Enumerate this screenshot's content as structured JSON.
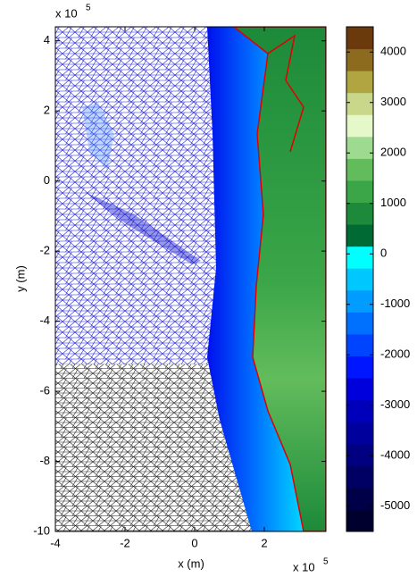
{
  "chart_data": {
    "type": "mesh",
    "x_label": "x (m)",
    "y_label": "y (m)",
    "x_scale_label": {
      "base": "x 10",
      "power": "5"
    },
    "y_scale_label": {
      "base": "x 10",
      "power": "5"
    },
    "xlim": [
      -4,
      3.77
    ],
    "ylim": [
      -10,
      4.4
    ],
    "xticks": [
      -4,
      -2,
      0,
      2
    ],
    "yticks": [
      -10,
      -8,
      -6,
      -4,
      -2,
      0,
      2,
      4
    ],
    "colorbar": {
      "lim": [
        -5500,
        4500
      ],
      "ticks": [
        -5000,
        -4000,
        -3000,
        -2000,
        -1000,
        0,
        1000,
        2000,
        3000,
        4000
      ],
      "colors": [
        "#00002e",
        "#000048",
        "#000064",
        "#000080",
        "#00009c",
        "#0000bb",
        "#0000dd",
        "#0016ff",
        "#0044ff",
        "#0070ff",
        "#009cff",
        "#00c8ff",
        "#00ffff",
        "#006a35",
        "#1c8a3a",
        "#3aa648",
        "#62bc5c",
        "#9edb90",
        "#e4f8ca",
        "#c9d78a",
        "#b0a540",
        "#8c6a1e",
        "#6a3a0c"
      ]
    }
  }
}
